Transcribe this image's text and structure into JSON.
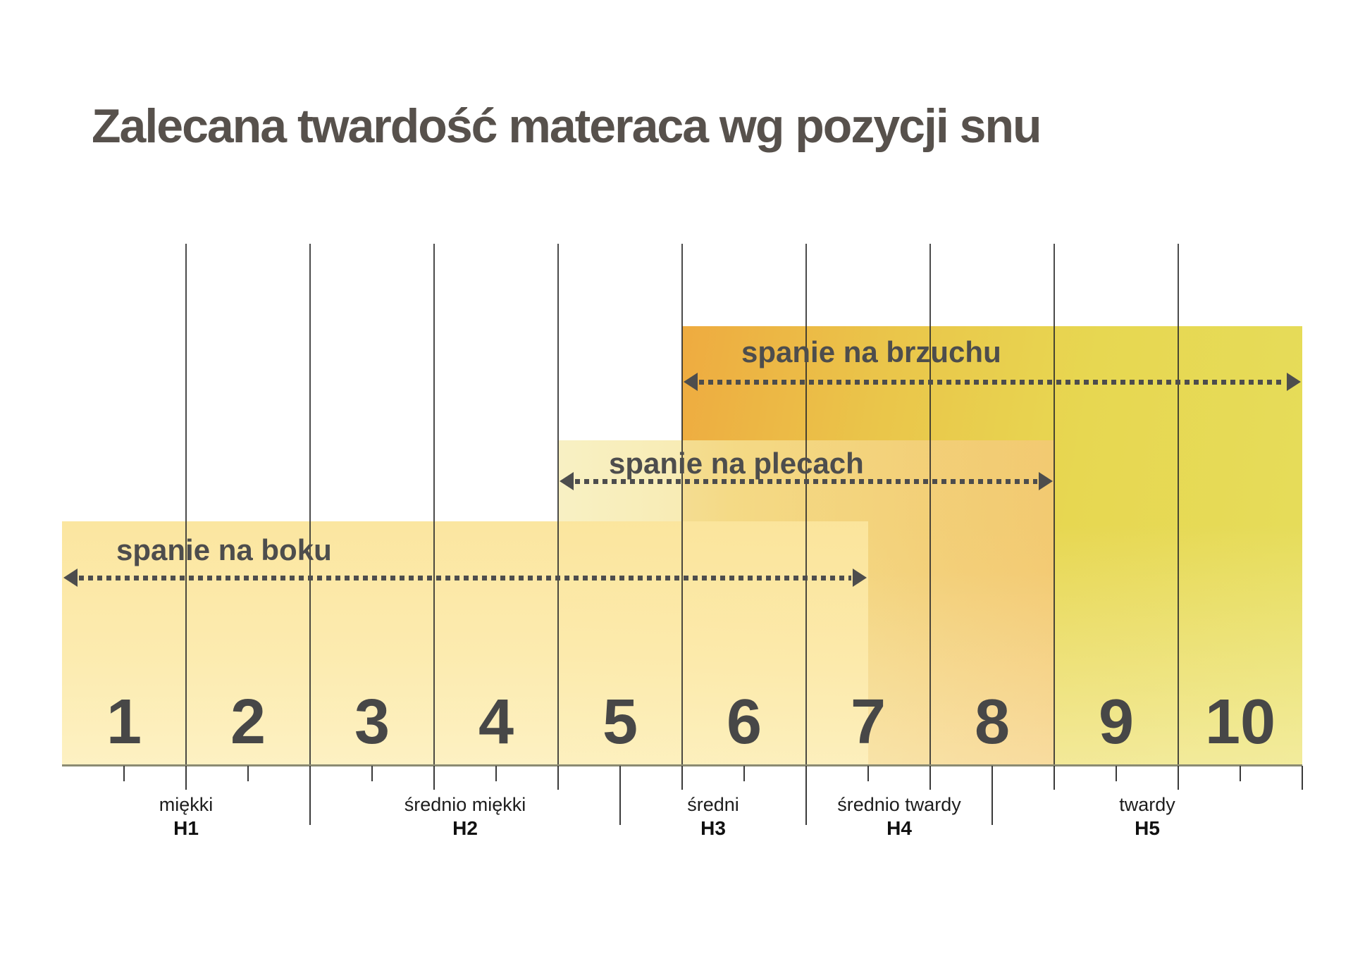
{
  "title": "Zalecana twardość materaca wg pozycji snu",
  "chart_data": {
    "type": "bar",
    "subtype": "horizontal-range-bands",
    "title": "Zalecana twardość materaca wg pozycji snu",
    "x_axis": {
      "min": 0,
      "max": 10,
      "sections": [
        "1",
        "2",
        "3",
        "4",
        "5",
        "6",
        "7",
        "8",
        "9",
        "10"
      ],
      "tick_step": 0.5
    },
    "bands": [
      {
        "id": "brzuchu",
        "label": "spanie na brzuchu",
        "range": [
          5,
          10
        ],
        "color_left": "#eeab40",
        "color_right": "#e6dd5b"
      },
      {
        "id": "plecach",
        "label": "spanie na plecach",
        "range": [
          4,
          8
        ],
        "color_left": "#f7efbd",
        "color_right": "#f5c778"
      },
      {
        "id": "boku",
        "label": "spanie na boku",
        "range": [
          0,
          6.5
        ],
        "color": "#fbe7a3"
      }
    ],
    "firmness_scale": [
      {
        "code": "H1",
        "label": "miękki",
        "range": [
          0,
          2
        ]
      },
      {
        "code": "H2",
        "label": "średnio miękki",
        "range": [
          2,
          4.5
        ]
      },
      {
        "code": "H3",
        "label": "średni",
        "range": [
          4.5,
          6
        ]
      },
      {
        "code": "H4",
        "label": "średnio twardy",
        "range": [
          6,
          7.5
        ]
      },
      {
        "code": "H5",
        "label": "twardy",
        "range": [
          7.5,
          10
        ]
      }
    ],
    "grid_lines_at": [
      1,
      2,
      3,
      4,
      5,
      6,
      7,
      8,
      9
    ],
    "arrow_color": "#4d4d4d",
    "legend_position": "none",
    "grid": true
  }
}
